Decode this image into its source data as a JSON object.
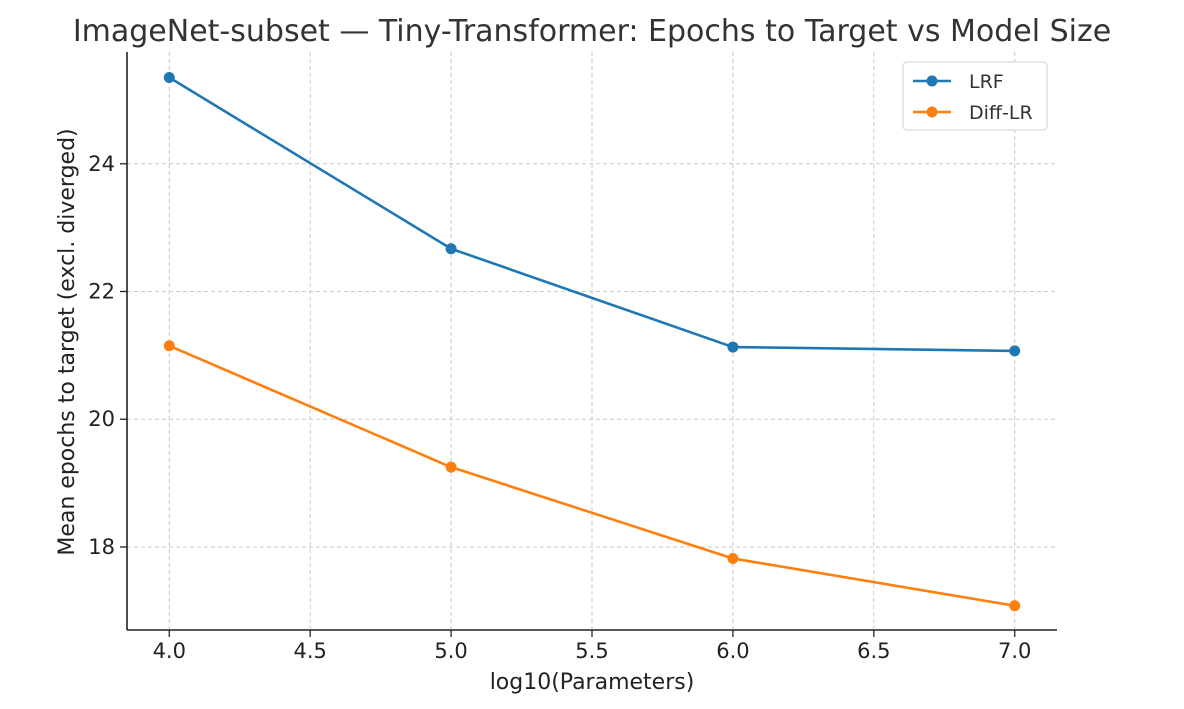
{
  "chart_data": {
    "type": "line",
    "title": "ImageNet-subset — Tiny-Transformer: Epochs to Target vs Model Size",
    "xlabel": "log10(Parameters)",
    "ylabel": "Mean epochs to target (excl. diverged)",
    "x": [
      4.0,
      5.0,
      6.0,
      7.0
    ],
    "x_ticks": [
      "4.0",
      "4.5",
      "5.0",
      "5.5",
      "6.0",
      "6.5",
      "7.0"
    ],
    "y_ticks": [
      "18",
      "20",
      "22",
      "24"
    ],
    "xlim": [
      3.85,
      7.15
    ],
    "ylim": [
      16.7,
      25.75
    ],
    "grid": true,
    "legend_position": "top-right",
    "series": [
      {
        "name": "LRF",
        "color": "#1f77b4",
        "values": [
          25.35,
          22.67,
          21.13,
          21.07
        ]
      },
      {
        "name": "Diff-LR",
        "color": "#ff7f0e",
        "values": [
          21.15,
          19.25,
          17.82,
          17.08
        ]
      }
    ]
  }
}
